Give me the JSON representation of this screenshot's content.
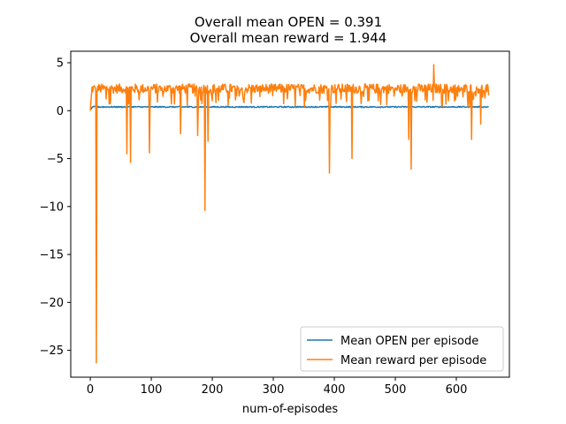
{
  "chart_data": {
    "type": "line",
    "title_lines": [
      "Overall mean OPEN = 0.391",
      "Overall mean reward = 1.944"
    ],
    "xlabel": "num-of-episodes",
    "ylabel": "",
    "xlim": [
      -32,
      687
    ],
    "ylim": [
      -27.8,
      6.2
    ],
    "xticks": [
      0,
      100,
      200,
      300,
      400,
      500,
      600
    ],
    "yticks": [
      5,
      0,
      -5,
      -10,
      -15,
      -20,
      -25
    ],
    "grid": false,
    "legend_position": "lower-right",
    "colors": {
      "open": "#1f77b4",
      "reward": "#ff7f0e"
    },
    "n_episodes": 654,
    "series": [
      {
        "name": "Mean OPEN per episode",
        "color": "#1f77b4",
        "mean": 0.391,
        "x_range": [
          0,
          653
        ]
      },
      {
        "name": "Mean reward per episode",
        "color": "#ff7f0e",
        "mean": 1.944,
        "x_range": [
          0,
          653
        ],
        "typical_range": [
          0.5,
          2.8
        ],
        "notable_points": [
          {
            "x": 0,
            "y": 0.0
          },
          {
            "x": 10,
            "y": -26.3
          },
          {
            "x": 60,
            "y": -4.5
          },
          {
            "x": 66,
            "y": -5.4
          },
          {
            "x": 97,
            "y": -4.4
          },
          {
            "x": 148,
            "y": -2.4
          },
          {
            "x": 176,
            "y": -2.6
          },
          {
            "x": 188,
            "y": -10.4
          },
          {
            "x": 193,
            "y": -3.2
          },
          {
            "x": 392,
            "y": -6.5
          },
          {
            "x": 429,
            "y": -5.0
          },
          {
            "x": 522,
            "y": -3.0
          },
          {
            "x": 526,
            "y": -6.1
          },
          {
            "x": 563,
            "y": 4.8
          },
          {
            "x": 625,
            "y": -3.0
          },
          {
            "x": 640,
            "y": -1.4
          }
        ]
      }
    ]
  }
}
